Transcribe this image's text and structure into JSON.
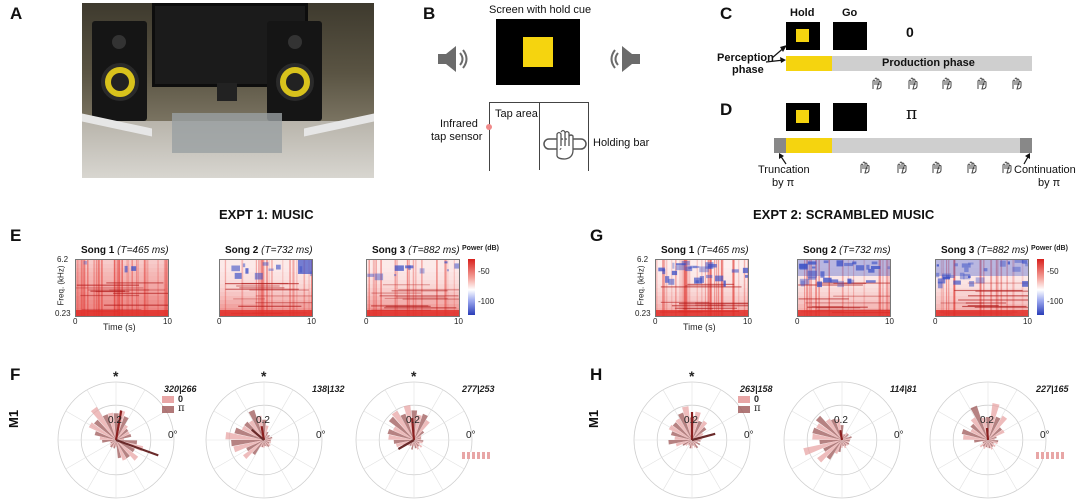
{
  "panels": {
    "a": "A",
    "b": "B",
    "c": "C",
    "d": "D",
    "e": "E",
    "f": "F",
    "g": "G",
    "h": "H"
  },
  "setup": {
    "screen_label": "Screen with hold cue",
    "tap_area": "Tap area",
    "infrared_1": "Infrared",
    "infrared_2": "tap sensor",
    "holding_bar": "Holding bar"
  },
  "timeline_c": {
    "hold": "Hold",
    "go": "Go",
    "shift": "0",
    "perception_1": "Perception",
    "perception_2": "phase",
    "production": "Production phase"
  },
  "timeline_d": {
    "shift": "π",
    "truncation_1": "Truncation",
    "truncation_2": "by π",
    "continuation_1": "Continuation",
    "continuation_2": "by π"
  },
  "expt1": {
    "title": "EXPT 1: MUSIC",
    "songs": [
      {
        "name": "Song 1",
        "period": "(T=465 ms)"
      },
      {
        "name": "Song 2",
        "period": "(T=732 ms)"
      },
      {
        "name": "Song 3",
        "period": "(T=882 ms)"
      }
    ]
  },
  "expt2": {
    "title": "EXPT 2: SCRAMBLED MUSIC",
    "songs": [
      {
        "name": "Song 1",
        "period": "(T=465 ms)"
      },
      {
        "name": "Song 2",
        "period": "(T=732 ms)"
      },
      {
        "name": "Song 3",
        "period": "(T=882 ms)"
      }
    ]
  },
  "spectro": {
    "ylabel": "Freq. (kHz)",
    "y_top": "6.2",
    "y_bot": "0.23",
    "xlabel": "Time (s)",
    "x0": "0",
    "x1": "10",
    "cbar_title": "Power (dB)",
    "cbar_a": "-50",
    "cbar_b": "-100"
  },
  "polar": {
    "row_label": "M1",
    "ring": "0.2",
    "zero": "0°",
    "legend_a": "0",
    "legend_b": "π",
    "expt1_counts": [
      "320|266",
      "138|132",
      "277|253"
    ],
    "expt2_counts": [
      "263|158",
      "114|81",
      "227|165"
    ],
    "star": "*"
  },
  "colors": {
    "yellow": "#f5d40f",
    "bar_gray": "#cfcfcf",
    "spec_red": "#e0302a",
    "spec_blue": "#3a4fc6",
    "polar_light": "#e8a6a6",
    "polar_dark": "#9e5858",
    "vector": "#8b2020"
  }
}
